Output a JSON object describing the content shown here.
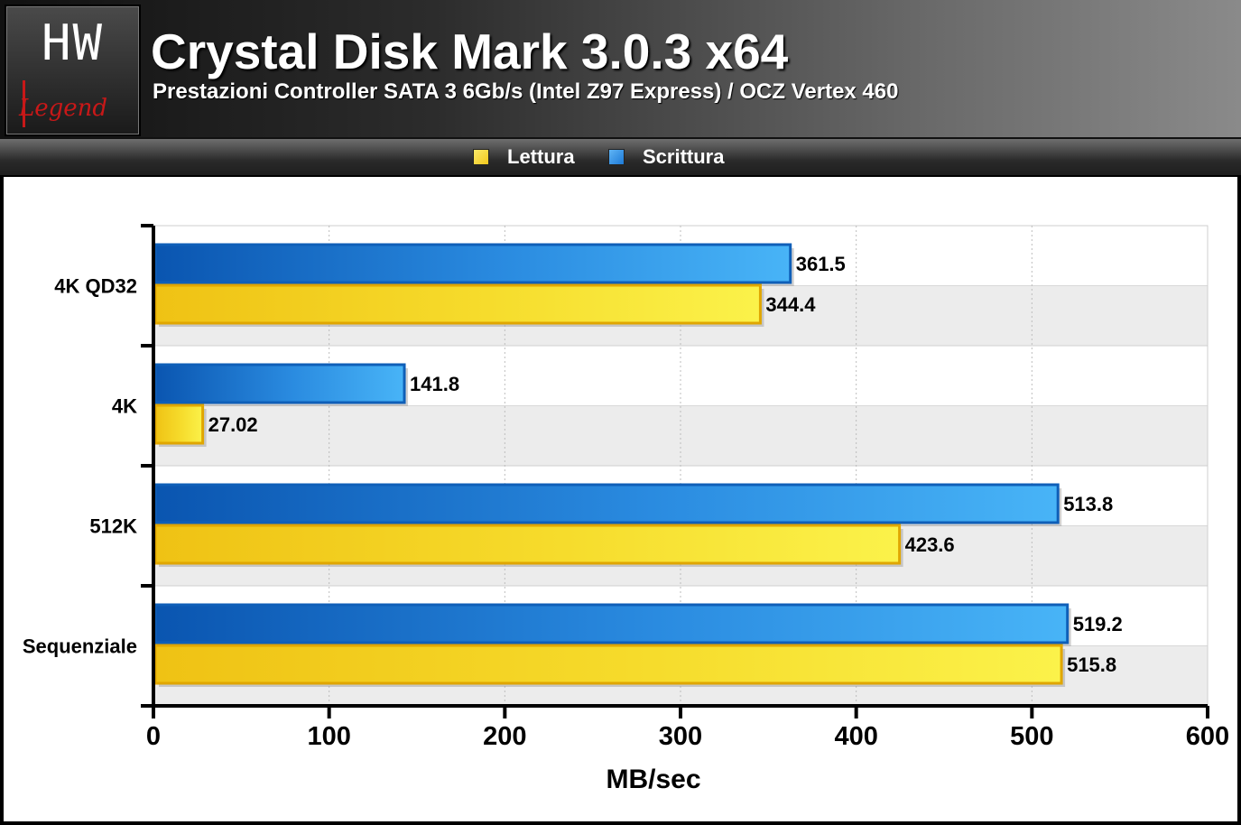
{
  "header": {
    "logo_top": "HW",
    "logo_bottom": "Legend",
    "title": "Crystal Disk Mark 3.0.3 x64",
    "subtitle": "Prestazioni Controller SATA 3 6Gb/s (Intel Z97 Express) / OCZ Vertex 460"
  },
  "colors": {
    "read": "#f2c81c",
    "write": "#1e7ad6",
    "band_alt": "#ececec"
  },
  "chart_data": {
    "type": "bar",
    "orientation": "horizontal",
    "title": "Crystal Disk Mark 3.0.3 x64",
    "subtitle": "Prestazioni Controller SATA 3 6Gb/s (Intel Z97 Express) / OCZ Vertex 460",
    "categories": [
      "4K QD32",
      "4K",
      "512K",
      "Sequenziale"
    ],
    "series": [
      {
        "name": "Scrittura",
        "values": [
          361.5,
          141.8,
          513.8,
          519.2
        ],
        "labels": [
          "361.5",
          "141.8",
          "513.8",
          "519.2"
        ]
      },
      {
        "name": "Lettura",
        "values": [
          344.4,
          27.02,
          423.6,
          515.8
        ],
        "labels": [
          "344.4",
          "27.02",
          "423.6",
          "515.8"
        ]
      }
    ],
    "xlabel": "MB/sec",
    "ylabel": "",
    "xlim": [
      0,
      600
    ],
    "xticks": [
      "0",
      "100",
      "200",
      "300",
      "400",
      "500",
      "600"
    ],
    "legend": [
      "Lettura",
      "Scrittura"
    ],
    "legend_position": "top-center",
    "grid": true
  }
}
